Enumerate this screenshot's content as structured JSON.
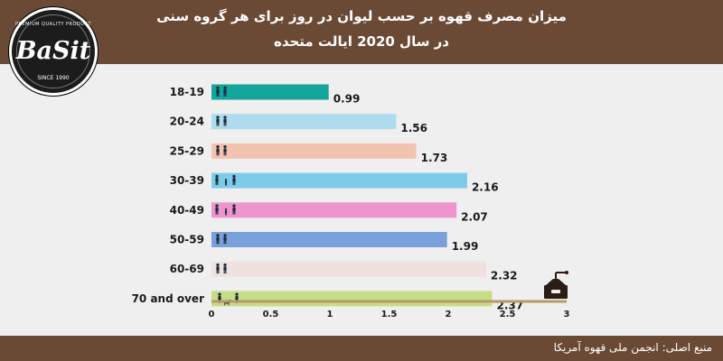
{
  "header": {
    "title_line1": "میزان مصرف قهوه بر حسب لیوان در روز برای هر گروه سنی",
    "title_line2": "در سال 2020 ایالت متحده"
  },
  "logo": {
    "top_text": "PREMIUM QUALITY PRODUCT",
    "brand": "BaSit",
    "since": "SINCE 1990"
  },
  "footer": {
    "source": "منبع اصلی: انجمن ملی قهوه آمریکا"
  },
  "colors": {
    "header_bg": "#6b4a35",
    "background": "#efefef"
  },
  "chart_data": {
    "type": "bar",
    "orientation": "horizontal",
    "categories": [
      "18-19",
      "20-24",
      "25-29",
      "30-39",
      "40-49",
      "50-59",
      "60-69",
      "70 and over"
    ],
    "values": [
      0.99,
      1.56,
      1.73,
      2.16,
      2.07,
      1.99,
      2.32,
      2.37
    ],
    "value_labels": [
      "0.99",
      "1.56",
      "1.73",
      "2.16",
      "2.07",
      "1.99",
      "2.32",
      "2.37"
    ],
    "bar_colors": [
      "#13a69b",
      "#aedcee",
      "#f2c4b0",
      "#7ccce9",
      "#ee94cc",
      "#7aa0dc",
      "#efe1dd",
      "#c6dd88"
    ],
    "xlim": [
      0,
      3
    ],
    "x_ticks": [
      0,
      0.5,
      1,
      1.5,
      2,
      2.5,
      3
    ],
    "x_tick_labels": [
      "0",
      "0.5",
      "1",
      "1.5",
      "2",
      "2.5",
      "3"
    ],
    "xlabel": "",
    "ylabel": "",
    "grid": false,
    "icons": [
      "people-icon",
      "people-icon",
      "people-icon",
      "family-icon",
      "family-icon",
      "people-icon",
      "people-icon",
      "elderly-dog-icon"
    ],
    "decoration": "coffee-grinder-icon"
  }
}
